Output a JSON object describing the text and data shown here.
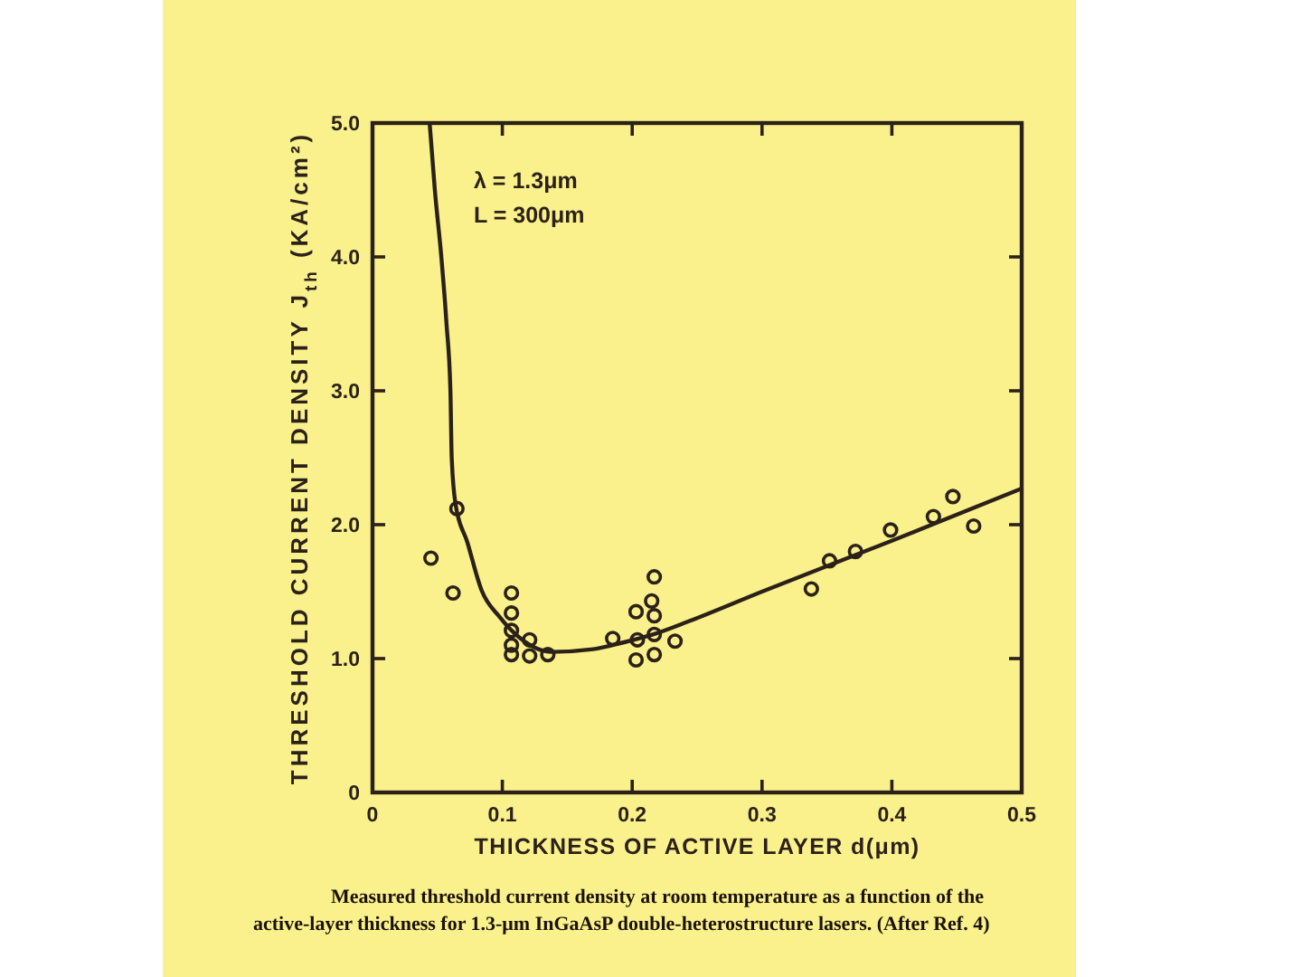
{
  "chart_data": {
    "type": "scatter",
    "xlabel": "THICKNESS OF ACTIVE LAYER d(μm)",
    "ylabel": "THRESHOLD CURRENT DENSITY J$_{th}$ (KA/cm²)",
    "annotations": [
      "λ = 1.3μm",
      "L = 300μm",
      "Measured threshold current density at room temperature as a function of the active-layer thickness for 1.3-μm InGaAsP double-heterostructure lasers. (After Ref. 4)"
    ],
    "xlim": [
      0,
      0.5
    ],
    "ylim": [
      0,
      5
    ],
    "xticks": [
      0,
      0.1,
      0.2,
      0.3,
      0.4,
      0.5
    ],
    "yticks": [
      0,
      {
        "value": 1,
        "label": "1.0"
      },
      {
        "value": 2,
        "label": "2.0"
      },
      {
        "value": 3,
        "label": "3.0"
      },
      {
        "value": 4,
        "label": "4.0"
      },
      {
        "value": 5,
        "label": "5.0"
      }
    ],
    "series": [
      {
        "color": "#2b2118",
        "marker": "circle",
        "x": [
          0.045,
          0.062,
          0.065,
          0.107,
          0.107,
          0.107,
          0.107,
          0.107,
          0.121,
          0.121,
          0.135,
          0.185,
          0.203,
          0.204,
          0.203,
          0.217,
          0.215,
          0.217,
          0.217,
          0.217,
          0.233,
          0.338,
          0.352,
          0.372,
          0.399,
          0.432,
          0.447,
          0.463
        ],
        "values": [
          1.75,
          1.49,
          2.12,
          1.49,
          1.34,
          1.21,
          1.1,
          1.03,
          1.14,
          1.02,
          1.03,
          1.15,
          1.35,
          1.14,
          0.99,
          1.61,
          1.43,
          1.32,
          1.18,
          1.03,
          1.13,
          1.52,
          1.73,
          1.8,
          1.96,
          2.06,
          2.21,
          1.99
        ]
      },
      {
        "type": "line",
        "color": "#2b2118",
        "x": [
          0.044,
          0.048,
          0.053,
          0.057,
          0.06,
          0.061,
          0.064,
          0.073,
          0.084,
          0.098,
          0.114,
          0.138,
          0.17,
          0.193,
          0.216,
          0.244,
          0.3,
          0.4,
          0.5
        ],
        "values": [
          5.0,
          4.5,
          4.0,
          3.5,
          3.0,
          2.5,
          2.15,
          1.87,
          1.51,
          1.31,
          1.15,
          1.05,
          1.07,
          1.12,
          1.18,
          1.28,
          1.5,
          1.88,
          2.27
        ]
      }
    ]
  }
}
